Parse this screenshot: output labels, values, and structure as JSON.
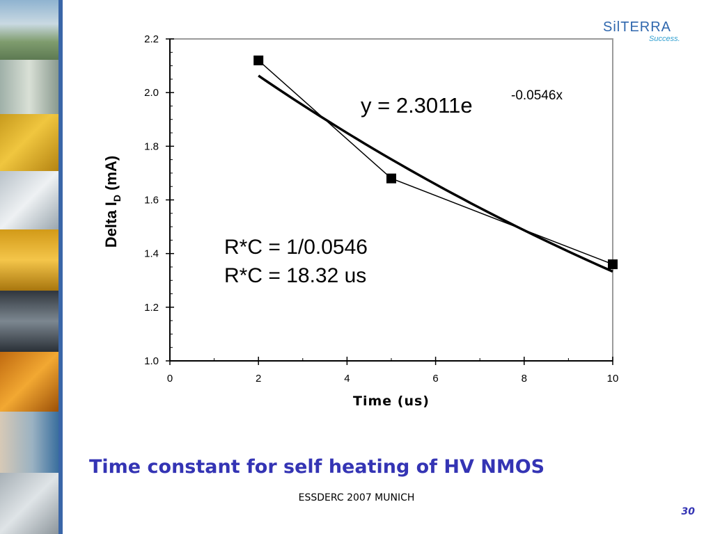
{
  "logo": {
    "text": "SilTERRA",
    "tagline": "Success."
  },
  "slide": {
    "title": "Time constant for self heating of HV NMOS",
    "footer": "ESSDERC 2007 MUNICH",
    "page_number": "30"
  },
  "colors": {
    "title": "#3434b4",
    "sidebar": "#3a66a8",
    "logo": "#2f67ae"
  },
  "chart_data": {
    "type": "scatter",
    "title": "",
    "xlabel": "Time (us)",
    "ylabel": "Delta I_D (mA)",
    "xlim": [
      0,
      10
    ],
    "ylim": [
      1.0,
      2.2
    ],
    "xticks": [
      "0",
      "2",
      "4",
      "6",
      "8",
      "10"
    ],
    "yticks": [
      "1.0",
      "1.2",
      "1.4",
      "1.6",
      "1.8",
      "2.0",
      "2.2"
    ],
    "grid": false,
    "series": [
      {
        "type": "line+markers",
        "x": [
          2,
          5,
          10
        ],
        "y": [
          2.12,
          1.68,
          1.36
        ]
      }
    ],
    "trendline": {
      "type": "exponential",
      "a": 2.3011,
      "b": -0.0546,
      "x_range": [
        2,
        10
      ]
    },
    "annotations": {
      "equation_base": "y = 2.3011e",
      "equation_exp": "-0.0546x",
      "rc_line1": "R*C = 1/0.0546",
      "rc_line2": "R*C = 18.32 us"
    }
  }
}
